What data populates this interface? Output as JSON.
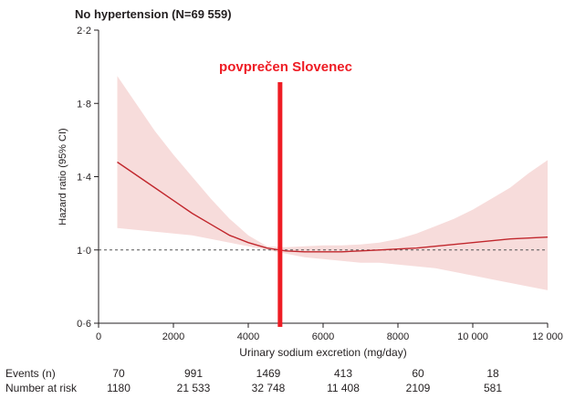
{
  "chart_data": {
    "type": "line",
    "title": "No hypertension (N=69 559)",
    "xlabel": "Urinary sodium excretion (mg/day)",
    "ylabel": "Hazard ratio (95% CI)",
    "xlim": [
      0,
      12000
    ],
    "ylim": [
      0.6,
      2.2
    ],
    "x_ticks": [
      0,
      2000,
      4000,
      6000,
      8000,
      10000,
      12000
    ],
    "x_tick_labels": [
      "0",
      "2000",
      "4000",
      "6000",
      "8000",
      "10 000",
      "12 000"
    ],
    "y_ticks": [
      0.6,
      1.0,
      1.4,
      1.8,
      2.2
    ],
    "y_tick_labels": [
      "0·6",
      "1·0",
      "1·4",
      "1·8",
      "2·2"
    ],
    "reference_line": {
      "y": 1.0,
      "style": "dashed"
    },
    "series": [
      {
        "color": "#c1272d",
        "ci_color": "#f7dcdb",
        "points": [
          {
            "x": 500,
            "y": 1.48,
            "lo": 1.12,
            "hi": 1.95
          },
          {
            "x": 1000,
            "y": 1.41,
            "lo": 1.11,
            "hi": 1.8
          },
          {
            "x": 1500,
            "y": 1.34,
            "lo": 1.1,
            "hi": 1.65
          },
          {
            "x": 2000,
            "y": 1.27,
            "lo": 1.09,
            "hi": 1.52
          },
          {
            "x": 2500,
            "y": 1.2,
            "lo": 1.08,
            "hi": 1.4
          },
          {
            "x": 3000,
            "y": 1.14,
            "lo": 1.06,
            "hi": 1.28
          },
          {
            "x": 3500,
            "y": 1.08,
            "lo": 1.04,
            "hi": 1.17
          },
          {
            "x": 4000,
            "y": 1.04,
            "lo": 1.02,
            "hi": 1.08
          },
          {
            "x": 4500,
            "y": 1.01,
            "lo": 1.0,
            "hi": 1.02
          },
          {
            "x": 5000,
            "y": 0.995,
            "lo": 0.98,
            "hi": 1.015
          },
          {
            "x": 5500,
            "y": 0.99,
            "lo": 0.96,
            "hi": 1.02
          },
          {
            "x": 6000,
            "y": 0.99,
            "lo": 0.95,
            "hi": 1.025
          },
          {
            "x": 6500,
            "y": 0.99,
            "lo": 0.94,
            "hi": 1.025
          },
          {
            "x": 7000,
            "y": 0.995,
            "lo": 0.93,
            "hi": 1.03
          },
          {
            "x": 7500,
            "y": 1.0,
            "lo": 0.93,
            "hi": 1.04
          },
          {
            "x": 8000,
            "y": 1.005,
            "lo": 0.92,
            "hi": 1.06
          },
          {
            "x": 8500,
            "y": 1.01,
            "lo": 0.91,
            "hi": 1.09
          },
          {
            "x": 9000,
            "y": 1.02,
            "lo": 0.9,
            "hi": 1.13
          },
          {
            "x": 9500,
            "y": 1.03,
            "lo": 0.88,
            "hi": 1.17
          },
          {
            "x": 10000,
            "y": 1.04,
            "lo": 0.86,
            "hi": 1.22
          },
          {
            "x": 10500,
            "y": 1.05,
            "lo": 0.84,
            "hi": 1.28
          },
          {
            "x": 11000,
            "y": 1.06,
            "lo": 0.82,
            "hi": 1.34
          },
          {
            "x": 11500,
            "y": 1.065,
            "lo": 0.8,
            "hi": 1.42
          },
          {
            "x": 12000,
            "y": 1.07,
            "lo": 0.78,
            "hi": 1.49
          }
        ]
      }
    ],
    "annotation": {
      "text": "povprečen Slovenec",
      "x": 4850,
      "color": "#ee1c24"
    },
    "risk_table": {
      "rows": [
        {
          "label": "Events (n)",
          "values": [
            "70",
            "991",
            "1469",
            "413",
            "60",
            "18"
          ]
        },
        {
          "label": "Number at risk",
          "values": [
            "1180",
            "21 533",
            "32 748",
            "11 408",
            "2109",
            "581"
          ]
        }
      ],
      "x": [
        1000,
        3000,
        5000,
        7000,
        9000,
        11000
      ]
    },
    "grid": false,
    "legend": "none"
  }
}
